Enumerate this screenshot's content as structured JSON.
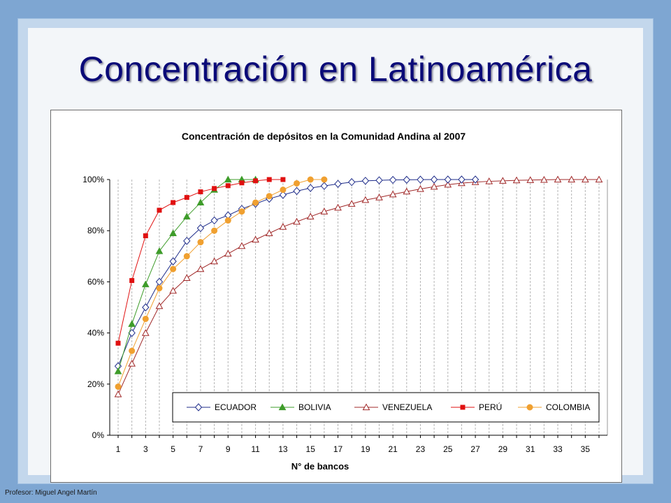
{
  "slide": {
    "title": "Concentración en Latinoamérica",
    "footer": "Profesor: Miguel Angel Martín"
  },
  "chart_data": {
    "type": "line",
    "title": "Concentración de depósitos en la Comunidad Andina al 2007",
    "xlabel": "N° de bancos",
    "ylabel": "",
    "xlim": [
      1,
      36
    ],
    "ylim": [
      0,
      100
    ],
    "x_ticks": [
      "1",
      "3",
      "5",
      "7",
      "9",
      "11",
      "13",
      "15",
      "17",
      "19",
      "21",
      "23",
      "25",
      "27",
      "29",
      "31",
      "33",
      "35"
    ],
    "y_ticks": [
      "0%",
      "20%",
      "40%",
      "60%",
      "80%",
      "100%"
    ],
    "grid": "vertical dashed",
    "legend_position": "bottom-inside",
    "series": [
      {
        "name": "ECUADOR",
        "color": "#1f2d8a",
        "marker": "diamond-open",
        "values": [
          27,
          40,
          50,
          60,
          68,
          76,
          81,
          84,
          86,
          88.5,
          90.5,
          92.5,
          94,
          95.5,
          96.7,
          97.5,
          98.3,
          99,
          99.5,
          99.7,
          99.85,
          99.9,
          99.95,
          100,
          100,
          100,
          100
        ]
      },
      {
        "name": "BOLIVIA",
        "color": "#3e9c2a",
        "marker": "triangle-filled",
        "values": [
          25,
          43.5,
          59,
          72,
          79,
          85.5,
          91,
          96,
          100,
          100,
          100
        ]
      },
      {
        "name": "VENEZUELA",
        "color": "#a02828",
        "marker": "triangle-open",
        "values": [
          16,
          28,
          40,
          50.5,
          56.5,
          61.5,
          65,
          68,
          71,
          74,
          76.5,
          79,
          81.5,
          83.5,
          85.5,
          87.5,
          89,
          90.5,
          92,
          93,
          94.2,
          95.3,
          96.3,
          97.2,
          98,
          98.6,
          99,
          99.3,
          99.5,
          99.7,
          99.8,
          99.9,
          100,
          100,
          100,
          100
        ]
      },
      {
        "name": "PERÚ",
        "color": "#e01010",
        "marker": "square-filled",
        "values": [
          36,
          60.5,
          78,
          88,
          91,
          93,
          95.2,
          96.5,
          97.6,
          98.7,
          99.5,
          100,
          100
        ]
      },
      {
        "name": "COLOMBIA",
        "color": "#f0a030",
        "marker": "circle-filled",
        "values": [
          19,
          33,
          45.5,
          57.5,
          65,
          70,
          75.5,
          80,
          84,
          87.5,
          91,
          93.5,
          96,
          98.5,
          100,
          100
        ]
      }
    ]
  }
}
